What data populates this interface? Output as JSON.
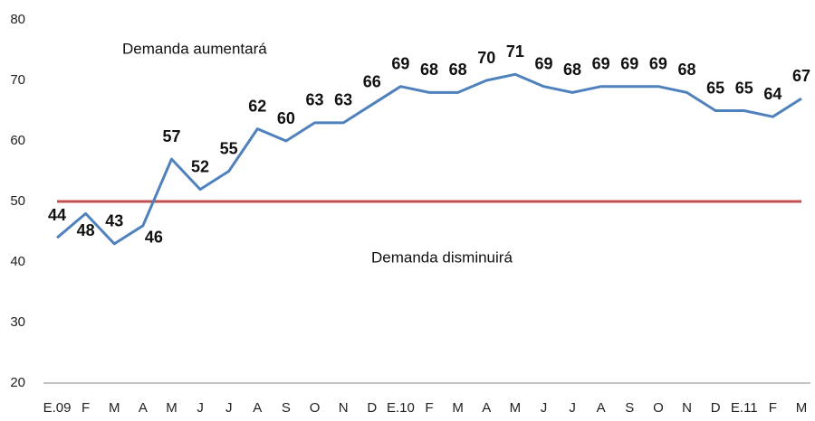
{
  "chart_data": {
    "type": "line",
    "annotations": [
      "Demanda aumentará",
      "Demanda disminuirá"
    ],
    "categories": [
      "E.09",
      "F",
      "M",
      "A",
      "M",
      "J",
      "J",
      "A",
      "S",
      "O",
      "N",
      "D",
      "E.10",
      "F",
      "M",
      "A",
      "M",
      "J",
      "J",
      "A",
      "S",
      "O",
      "N",
      "D",
      "E.11",
      "F",
      "M"
    ],
    "series": [
      {
        "color": "#4f81bd",
        "values": [
          44,
          48,
          43,
          46,
          57,
          52,
          55,
          62,
          60,
          63,
          63,
          66,
          69,
          68,
          68,
          70,
          71,
          69,
          68,
          69,
          69,
          69,
          68,
          65,
          65,
          64,
          67
        ]
      }
    ],
    "reference_line": {
      "value": 50,
      "color": "#c0504d"
    },
    "ylim": [
      20,
      80
    ],
    "yticks": [
      20,
      30,
      40,
      50,
      60,
      70,
      80
    ],
    "grid": false
  }
}
